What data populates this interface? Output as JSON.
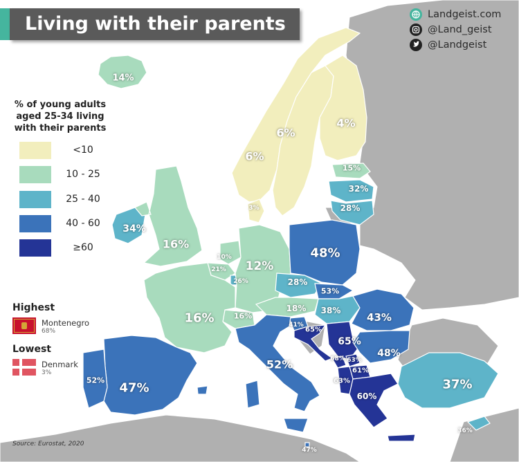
{
  "title": "Living with their parents",
  "social": {
    "website": "Landgeist.com",
    "instagram": "@Land_geist",
    "twitter": "@Landgeist"
  },
  "legend": {
    "title": "% of young adults aged 25-34 living with their parents",
    "classes": [
      {
        "label": "<10",
        "color": "#f2eebd"
      },
      {
        "label": "10 - 25",
        "color": "#a8dbbd"
      },
      {
        "label": "25 - 40",
        "color": "#5eb4c9"
      },
      {
        "label": "40 - 60",
        "color": "#3b73ba"
      },
      {
        "label": "≥60",
        "color": "#243496"
      }
    ],
    "highest": {
      "heading": "Highest",
      "country": "Montenegro",
      "value": "68%"
    },
    "lowest": {
      "heading": "Lowest",
      "country": "Denmark",
      "value": "3%"
    }
  },
  "source": "Source: Eurostat, 2020",
  "colors": {
    "sea": "#ffffff",
    "non_eu": "#b0b0b0",
    "title_bg": "#5a5a5a",
    "accent": "#45b59e"
  },
  "countries": [
    {
      "name": "Iceland",
      "label": "14%",
      "cls": 1
    },
    {
      "name": "Norway",
      "label": "6%",
      "cls": 0
    },
    {
      "name": "Sweden",
      "label": "6%",
      "cls": 0
    },
    {
      "name": "Finland",
      "label": "4%",
      "cls": 0
    },
    {
      "name": "Estonia",
      "label": "15%",
      "cls": 1
    },
    {
      "name": "Latvia",
      "label": "32%",
      "cls": 2
    },
    {
      "name": "Lithuania",
      "label": "28%",
      "cls": 2
    },
    {
      "name": "Denmark",
      "label": "3%",
      "cls": 0
    },
    {
      "name": "Ireland",
      "label": "34%",
      "cls": 2
    },
    {
      "name": "United Kingdom",
      "label": "16%",
      "cls": 1
    },
    {
      "name": "Netherlands",
      "label": "10%",
      "cls": 1
    },
    {
      "name": "Belgium",
      "label": "21%",
      "cls": 1
    },
    {
      "name": "Luxembourg",
      "label": "26%",
      "cls": 2
    },
    {
      "name": "Germany",
      "label": "12%",
      "cls": 1
    },
    {
      "name": "Poland",
      "label": "48%",
      "cls": 3
    },
    {
      "name": "Czechia",
      "label": "28%",
      "cls": 2
    },
    {
      "name": "Slovakia",
      "label": "53%",
      "cls": 3
    },
    {
      "name": "Austria",
      "label": "18%",
      "cls": 1
    },
    {
      "name": "Switzerland",
      "label": "16%",
      "cls": 1
    },
    {
      "name": "France",
      "label": "16%",
      "cls": 1
    },
    {
      "name": "Hungary",
      "label": "38%",
      "cls": 2
    },
    {
      "name": "Romania",
      "label": "43%",
      "cls": 3
    },
    {
      "name": "Slovenia",
      "label": "41%",
      "cls": 3
    },
    {
      "name": "Croatia",
      "label": "65%",
      "cls": 4
    },
    {
      "name": "Serbia",
      "label": "65%",
      "cls": 4
    },
    {
      "name": "Montenegro",
      "label": "68%",
      "cls": 4
    },
    {
      "name": "Kosovo",
      "label": "63%",
      "cls": 4
    },
    {
      "name": "North Macedonia",
      "label": "61%",
      "cls": 4
    },
    {
      "name": "Albania",
      "label": "63%",
      "cls": 4
    },
    {
      "name": "Bulgaria",
      "label": "48%",
      "cls": 3
    },
    {
      "name": "Greece",
      "label": "60%",
      "cls": 4
    },
    {
      "name": "Italy",
      "label": "52%",
      "cls": 3
    },
    {
      "name": "Spain",
      "label": "47%",
      "cls": 3
    },
    {
      "name": "Portugal",
      "label": "52%",
      "cls": 3
    },
    {
      "name": "Turkey",
      "label": "37%",
      "cls": 2
    },
    {
      "name": "Cyprus",
      "label": "36%",
      "cls": 2
    },
    {
      "name": "Malta",
      "label": "47%",
      "cls": 3
    }
  ]
}
